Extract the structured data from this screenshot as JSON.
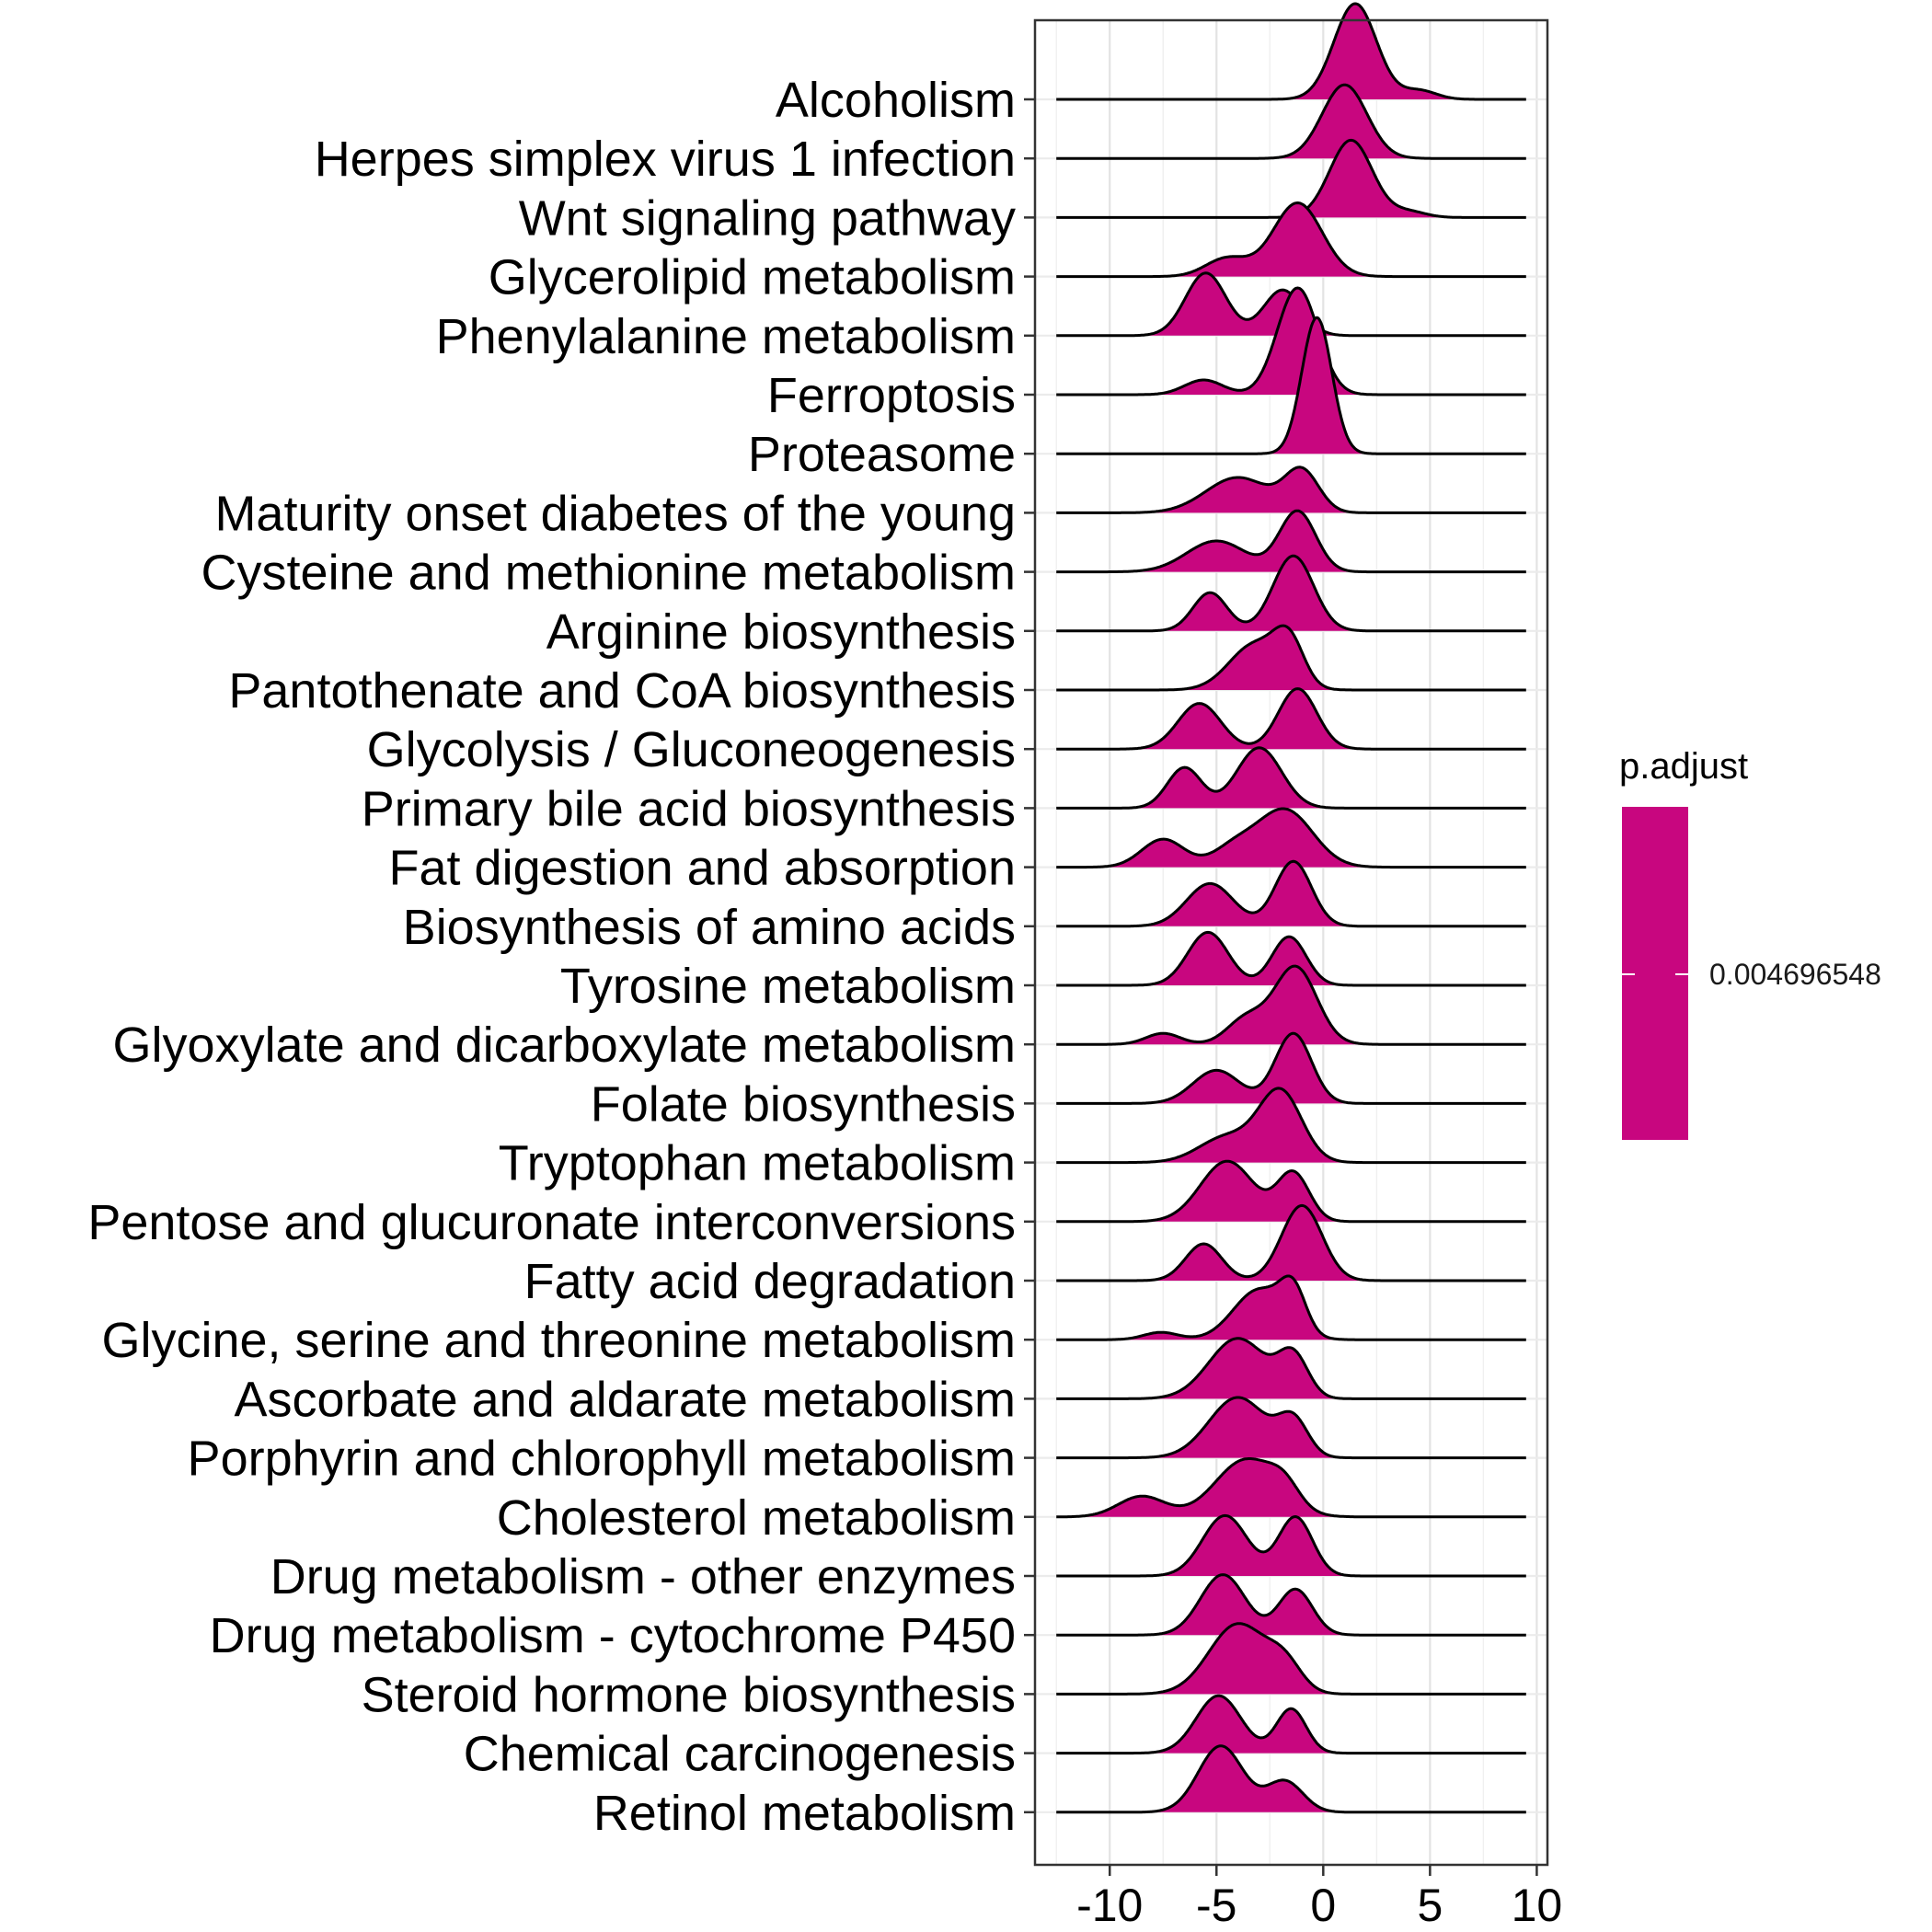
{
  "chart_data": {
    "type": "ridgeline",
    "xlim": [
      -13.5,
      10.5
    ],
    "x_ticks": [
      -10,
      -5,
      0,
      5,
      10
    ],
    "x_tick_labels": [
      "-10",
      "-5",
      "0",
      "5",
      "10"
    ],
    "fill_color": "#C8067F",
    "grid": true,
    "legend": {
      "title": "p.adjust",
      "labels": [
        "0.004696548"
      ],
      "position": "right"
    },
    "series": [
      {
        "name": "Alcoholism",
        "xmin": -12.5,
        "xmax": 9.5,
        "peaks": [
          [
            1.5,
            1.3,
            1.0
          ],
          [
            4.5,
            0.12,
            0.8
          ]
        ]
      },
      {
        "name": "Herpes simplex virus 1 infection",
        "xmin": -12.5,
        "xmax": 9.5,
        "peaks": [
          [
            1.0,
            1.0,
            1.05
          ]
        ]
      },
      {
        "name": "Wnt signaling pathway",
        "xmin": -12.5,
        "xmax": 9.5,
        "peaks": [
          [
            1.3,
            1.05,
            1.0
          ],
          [
            4.0,
            0.08,
            0.8
          ]
        ]
      },
      {
        "name": "Glycerolipid metabolism",
        "xmin": -12.5,
        "xmax": 9.5,
        "peaks": [
          [
            -1.2,
            1.0,
            1.15
          ],
          [
            -4.5,
            0.25,
            1.0
          ]
        ]
      },
      {
        "name": "Phenylalanine metabolism",
        "xmin": -12.5,
        "xmax": 9.5,
        "peaks": [
          [
            -5.5,
            0.85,
            0.95
          ],
          [
            -1.9,
            0.62,
            0.9
          ]
        ]
      },
      {
        "name": "Ferroptosis",
        "xmin": -12.5,
        "xmax": 9.5,
        "peaks": [
          [
            -1.2,
            1.45,
            0.95
          ],
          [
            -5.6,
            0.2,
            0.9
          ]
        ]
      },
      {
        "name": "Proteasome",
        "xmin": -12.5,
        "xmax": 9.5,
        "peaks": [
          [
            -0.3,
            1.85,
            0.7
          ]
        ]
      },
      {
        "name": "Maturity onset diabetes of the young",
        "xmin": -12.5,
        "xmax": 9.5,
        "peaks": [
          [
            -4.0,
            0.48,
            1.5
          ],
          [
            -1.0,
            0.55,
            0.8
          ]
        ]
      },
      {
        "name": "Cysteine and methionine metabolism",
        "xmin": -12.5,
        "xmax": 9.5,
        "peaks": [
          [
            -5.0,
            0.42,
            1.4
          ],
          [
            -1.2,
            0.82,
            0.85
          ]
        ]
      },
      {
        "name": "Arginine biosynthesis",
        "xmin": -12.5,
        "xmax": 9.5,
        "peaks": [
          [
            -5.3,
            0.52,
            0.8
          ],
          [
            -1.4,
            1.02,
            0.95
          ]
        ]
      },
      {
        "name": "Pantothenate and CoA biosynthesis",
        "xmin": -12.5,
        "xmax": 9.5,
        "peaks": [
          [
            -3.2,
            0.62,
            1.2
          ],
          [
            -1.6,
            0.58,
            0.7
          ]
        ]
      },
      {
        "name": "Glycolysis / Gluconeogenesis",
        "xmin": -12.5,
        "xmax": 9.5,
        "peaks": [
          [
            -5.8,
            0.62,
            1.0
          ],
          [
            -1.2,
            0.82,
            0.9
          ]
        ]
      },
      {
        "name": "Primary bile acid biosynthesis",
        "xmin": -12.5,
        "xmax": 9.5,
        "peaks": [
          [
            -6.5,
            0.55,
            0.8
          ],
          [
            -3.0,
            0.82,
            1.05
          ]
        ]
      },
      {
        "name": "Fat digestion and absorption",
        "xmin": -12.5,
        "xmax": 9.5,
        "peaks": [
          [
            -7.5,
            0.38,
            1.0
          ],
          [
            -1.8,
            0.78,
            1.3
          ],
          [
            -4.2,
            0.25,
            1.0
          ]
        ]
      },
      {
        "name": "Biosynthesis of amino acids",
        "xmin": -12.5,
        "xmax": 9.5,
        "peaks": [
          [
            -5.3,
            0.58,
            1.1
          ],
          [
            -1.4,
            0.88,
            0.85
          ]
        ]
      },
      {
        "name": "Tyrosine metabolism",
        "xmin": -12.5,
        "xmax": 9.5,
        "peaks": [
          [
            -5.4,
            0.72,
            0.95
          ],
          [
            -1.6,
            0.66,
            0.8
          ]
        ]
      },
      {
        "name": "Glyoxylate and dicarboxylate metabolism",
        "xmin": -12.5,
        "xmax": 9.5,
        "peaks": [
          [
            -1.3,
            1.05,
            1.0
          ],
          [
            -3.6,
            0.35,
            0.9
          ],
          [
            -7.5,
            0.15,
            0.8
          ]
        ]
      },
      {
        "name": "Folate biosynthesis",
        "xmin": -12.5,
        "xmax": 9.5,
        "peaks": [
          [
            -5.0,
            0.45,
            1.1
          ],
          [
            -1.4,
            0.95,
            0.85
          ]
        ]
      },
      {
        "name": "Tryptophan metabolism",
        "xmin": -12.5,
        "xmax": 9.5,
        "peaks": [
          [
            -2.0,
            0.95,
            1.0
          ],
          [
            -4.5,
            0.35,
            1.3
          ]
        ]
      },
      {
        "name": "Pentose and glucuronate interconversions",
        "xmin": -12.5,
        "xmax": 9.5,
        "peaks": [
          [
            -4.5,
            0.82,
            1.25
          ],
          [
            -1.4,
            0.65,
            0.75
          ]
        ]
      },
      {
        "name": "Fatty acid degradation",
        "xmin": -12.5,
        "xmax": 9.5,
        "peaks": [
          [
            -5.6,
            0.5,
            0.85
          ],
          [
            -1.0,
            1.02,
            0.95
          ]
        ]
      },
      {
        "name": "Glycine, serine and threonine metabolism",
        "xmin": -12.5,
        "xmax": 9.5,
        "peaks": [
          [
            -3.0,
            0.68,
            1.2
          ],
          [
            -1.4,
            0.55,
            0.6
          ],
          [
            -7.6,
            0.1,
            0.8
          ]
        ]
      },
      {
        "name": "Ascorbate and aldarate metabolism",
        "xmin": -12.5,
        "xmax": 9.5,
        "peaks": [
          [
            -4.0,
            0.82,
            1.35
          ],
          [
            -1.4,
            0.55,
            0.7
          ]
        ]
      },
      {
        "name": "Porphyrin and chlorophyll metabolism",
        "xmin": -12.5,
        "xmax": 9.5,
        "peaks": [
          [
            -4.0,
            0.82,
            1.35
          ],
          [
            -1.4,
            0.48,
            0.7
          ]
        ]
      },
      {
        "name": "Cholesterol metabolism",
        "xmin": -12.5,
        "xmax": 9.5,
        "peaks": [
          [
            -3.6,
            0.78,
            1.45
          ],
          [
            -8.5,
            0.28,
            1.1
          ],
          [
            -1.8,
            0.25,
            0.7
          ]
        ]
      },
      {
        "name": "Drug metabolism - other enzymes",
        "xmin": -12.5,
        "xmax": 9.5,
        "peaks": [
          [
            -4.6,
            0.82,
            1.05
          ],
          [
            -1.3,
            0.8,
            0.8
          ]
        ]
      },
      {
        "name": "Drug metabolism - cytochrome P450",
        "xmin": -12.5,
        "xmax": 9.5,
        "peaks": [
          [
            -4.7,
            0.82,
            1.05
          ],
          [
            -1.3,
            0.62,
            0.8
          ]
        ]
      },
      {
        "name": "Steroid hormone biosynthesis",
        "xmin": -12.5,
        "xmax": 9.5,
        "peaks": [
          [
            -4.0,
            0.95,
            1.35
          ],
          [
            -1.8,
            0.35,
            0.8
          ]
        ]
      },
      {
        "name": "Chemical carcinogenesis",
        "xmin": -12.5,
        "xmax": 9.5,
        "peaks": [
          [
            -4.9,
            0.78,
            1.05
          ],
          [
            -1.5,
            0.6,
            0.7
          ]
        ]
      },
      {
        "name": "Retinol metabolism",
        "xmin": -12.5,
        "xmax": 9.5,
        "peaks": [
          [
            -4.8,
            0.9,
            1.05
          ],
          [
            -1.8,
            0.42,
            0.85
          ]
        ]
      }
    ]
  }
}
